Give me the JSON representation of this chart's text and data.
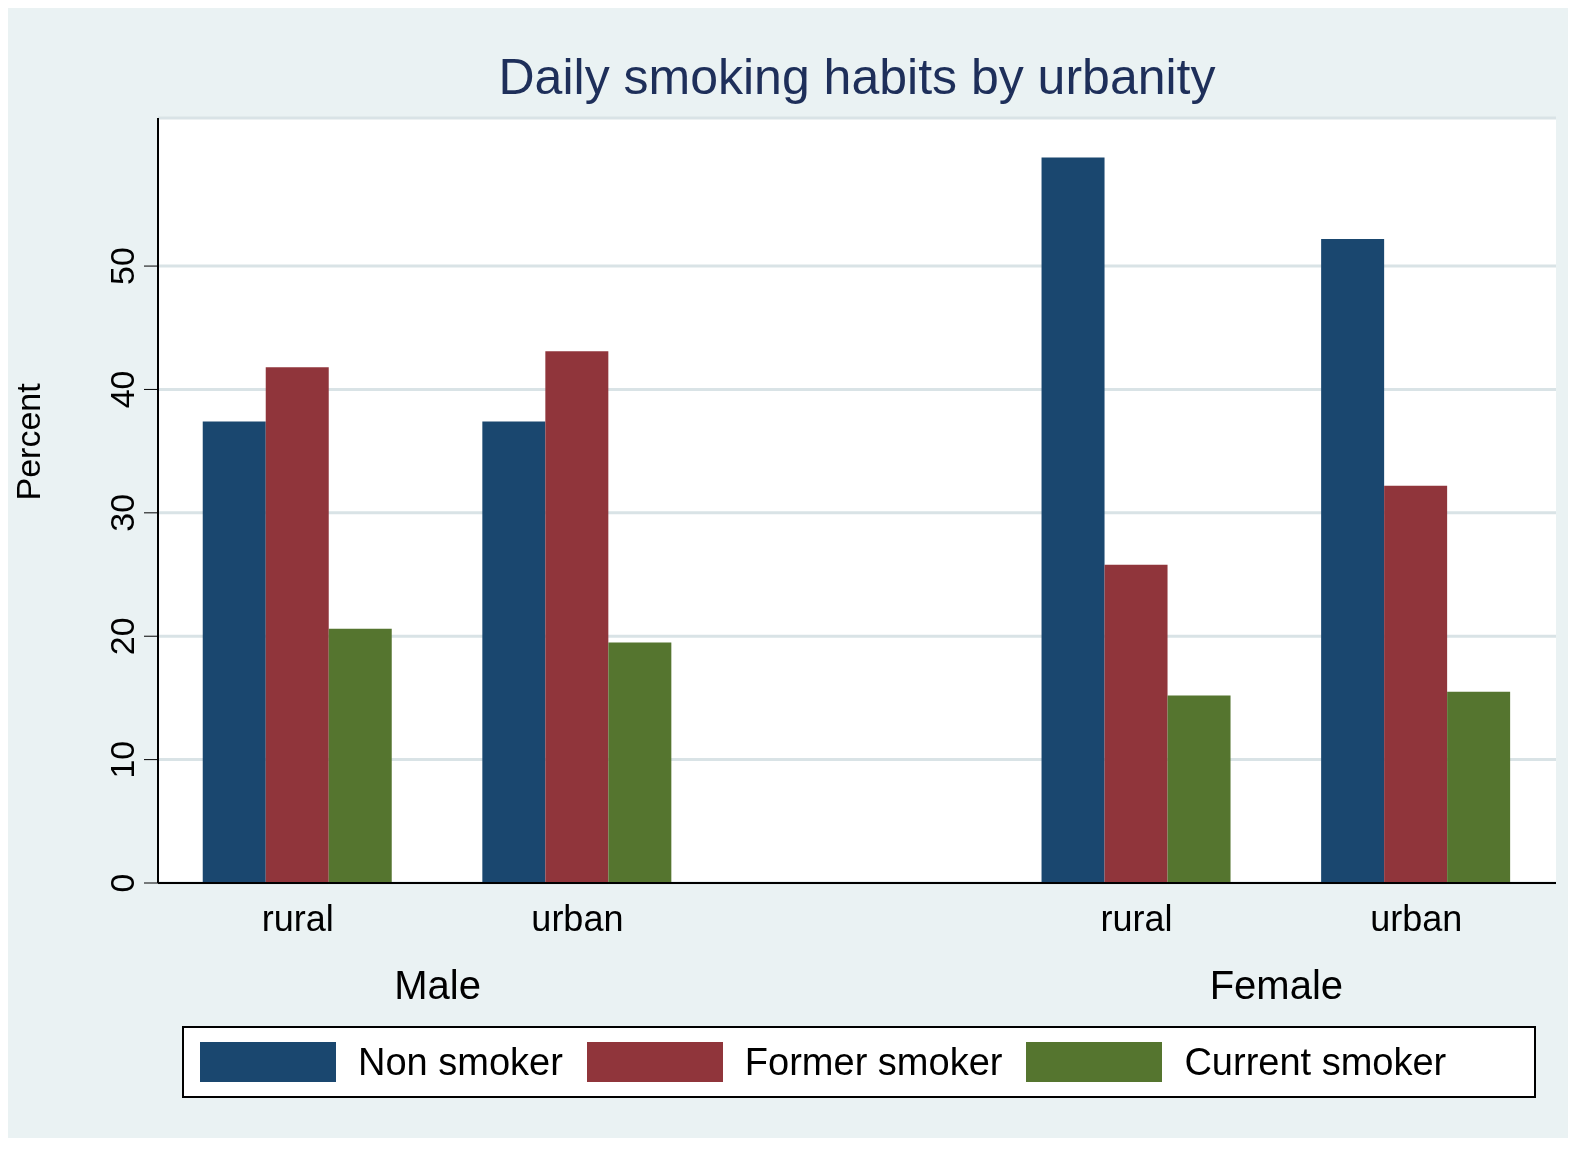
{
  "chart_data": {
    "type": "bar",
    "title": "Daily smoking habits by urbanity",
    "ylabel": "Percent",
    "categories": [
      "rural",
      "urban",
      "rural",
      "urban"
    ],
    "annotations": [
      "Male",
      "Female"
    ],
    "series": [
      {
        "name": "Non smoker",
        "color": "#1a476f",
        "values": [
          37.4,
          37.4,
          58.8,
          52.2
        ]
      },
      {
        "name": "Former smoker",
        "color": "#90353b",
        "values": [
          41.8,
          43.1,
          25.8,
          32.2
        ]
      },
      {
        "name": "Current smoker",
        "color": "#55752f",
        "values": [
          20.6,
          19.5,
          15.2,
          15.5
        ]
      }
    ],
    "ylim": [
      0,
      62
    ],
    "yticks": [
      0,
      10,
      20,
      30,
      40,
      50
    ],
    "grid": "y",
    "legend": "bottom"
  }
}
